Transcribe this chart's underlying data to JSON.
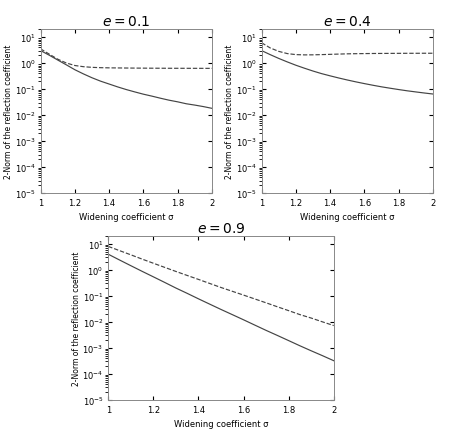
{
  "titles": [
    "e = 0.1",
    "e = 0.4",
    "e = 0.9"
  ],
  "xlabel": "Widening coefficient σ",
  "ylabel": "2-Norm of the reflection coefficient",
  "sigma": [
    1.0,
    1.05,
    1.1,
    1.15,
    1.2,
    1.25,
    1.3,
    1.35,
    1.4,
    1.45,
    1.5,
    1.55,
    1.6,
    1.65,
    1.7,
    1.75,
    1.8,
    1.85,
    1.9,
    1.95,
    2.0
  ],
  "solid_e01": [
    3.0,
    2.0,
    1.3,
    0.85,
    0.55,
    0.38,
    0.27,
    0.2,
    0.155,
    0.12,
    0.095,
    0.077,
    0.063,
    0.053,
    0.044,
    0.037,
    0.032,
    0.027,
    0.024,
    0.021,
    0.018
  ],
  "dashed_e01": [
    3.5,
    2.2,
    1.4,
    1.0,
    0.8,
    0.72,
    0.68,
    0.66,
    0.65,
    0.645,
    0.64,
    0.636,
    0.633,
    0.63,
    0.628,
    0.626,
    0.625,
    0.624,
    0.623,
    0.622,
    0.621
  ],
  "solid_e04": [
    3.0,
    2.1,
    1.5,
    1.1,
    0.82,
    0.63,
    0.49,
    0.39,
    0.32,
    0.265,
    0.222,
    0.188,
    0.161,
    0.139,
    0.121,
    0.107,
    0.095,
    0.085,
    0.077,
    0.07,
    0.064
  ],
  "dashed_e04": [
    6.0,
    3.8,
    2.8,
    2.3,
    2.1,
    2.05,
    2.06,
    2.1,
    2.15,
    2.2,
    2.25,
    2.28,
    2.3,
    2.32,
    2.33,
    2.34,
    2.35,
    2.36,
    2.36,
    2.37,
    2.37
  ],
  "solid_e09": [
    4.0,
    2.4,
    1.45,
    0.88,
    0.54,
    0.33,
    0.2,
    0.125,
    0.077,
    0.048,
    0.03,
    0.019,
    0.012,
    0.0075,
    0.0047,
    0.003,
    0.0019,
    0.0012,
    0.00077,
    0.0005,
    0.00032
  ],
  "dashed_e09": [
    8.0,
    5.5,
    3.8,
    2.6,
    1.8,
    1.25,
    0.87,
    0.61,
    0.43,
    0.3,
    0.21,
    0.15,
    0.107,
    0.076,
    0.054,
    0.038,
    0.027,
    0.019,
    0.014,
    0.01,
    0.0072
  ],
  "ylim": [
    1e-05,
    20.0
  ],
  "line_color": "#444444",
  "background": "#ffffff",
  "title_fontsize": 10,
  "label_fontsize": 6,
  "tick_fontsize": 6
}
